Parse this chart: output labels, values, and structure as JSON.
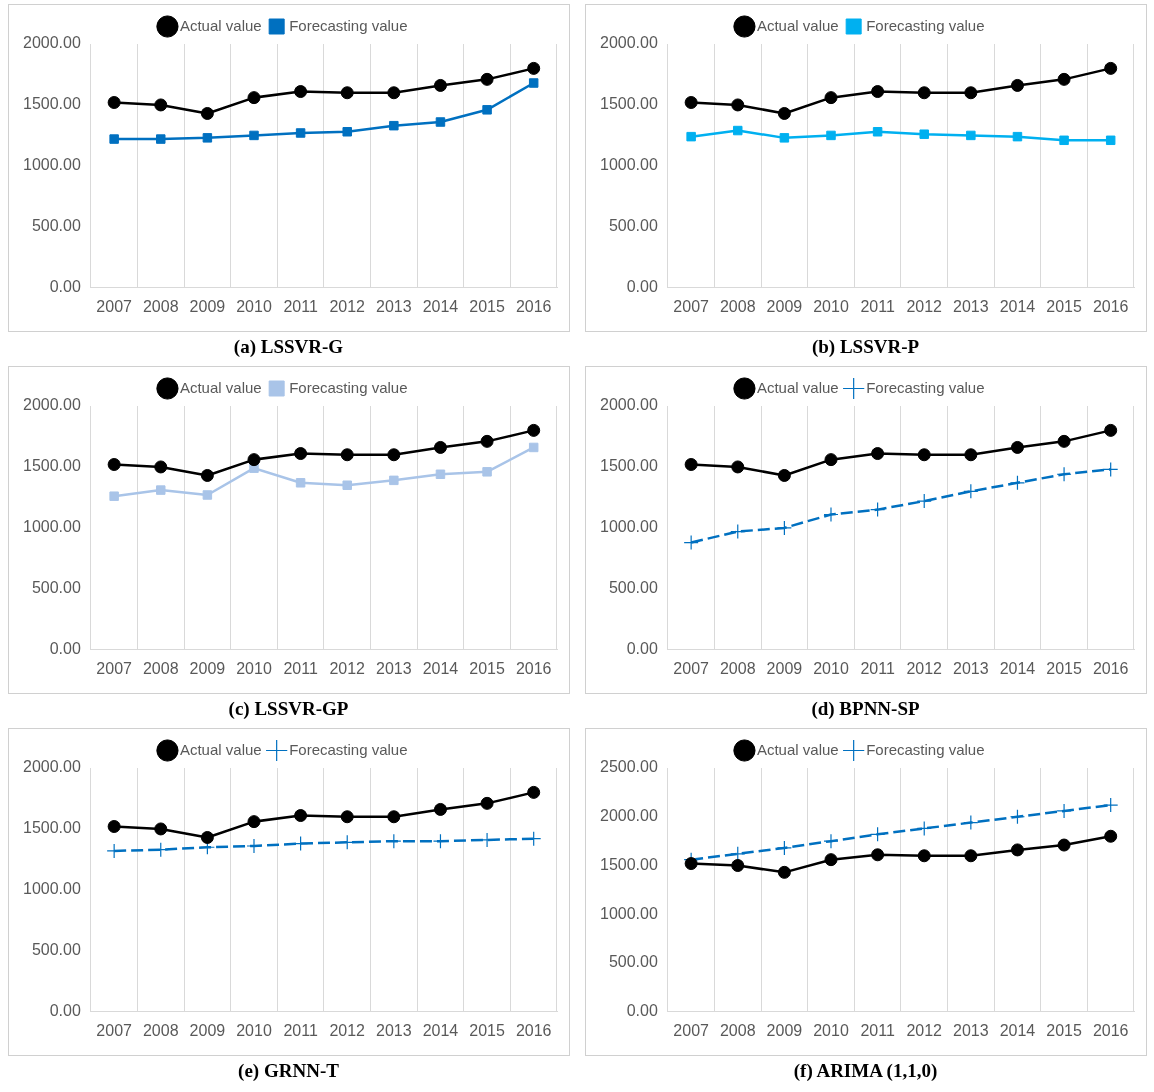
{
  "chart_data": [
    {
      "type": "line",
      "title": "(a) LSSVR-G",
      "categories": [
        "2007",
        "2008",
        "2009",
        "2010",
        "2011",
        "2012",
        "2013",
        "2014",
        "2015",
        "2016"
      ],
      "ylim": [
        0,
        2000
      ],
      "yticks": [
        {
          "value": 0,
          "label": "0.00"
        },
        {
          "value": 500,
          "label": "500.00"
        },
        {
          "value": 1000,
          "label": "1000.00"
        },
        {
          "value": 1500,
          "label": "1500.00"
        },
        {
          "value": 2000,
          "label": "2000.00"
        }
      ],
      "grid": "x",
      "legend": "top",
      "series": [
        {
          "name": "Actual value",
          "color": "#000000",
          "marker": "circle",
          "line_style": "solid",
          "values": [
            1520,
            1500,
            1430,
            1560,
            1610,
            1600,
            1600,
            1660,
            1710,
            1800
          ]
        },
        {
          "name": "Forecasting value",
          "color": "#0070c0",
          "marker": "square",
          "line_style": "solid",
          "values": [
            1220,
            1220,
            1230,
            1250,
            1270,
            1280,
            1330,
            1360,
            1460,
            1680
          ]
        }
      ]
    },
    {
      "type": "line",
      "title": "(b) LSSVR-P",
      "categories": [
        "2007",
        "2008",
        "2009",
        "2010",
        "2011",
        "2012",
        "2013",
        "2014",
        "2015",
        "2016"
      ],
      "ylim": [
        0,
        2000
      ],
      "yticks": [
        {
          "value": 0,
          "label": "0.00"
        },
        {
          "value": 500,
          "label": "500.00"
        },
        {
          "value": 1000,
          "label": "1000.00"
        },
        {
          "value": 1500,
          "label": "1500.00"
        },
        {
          "value": 2000,
          "label": "2000.00"
        }
      ],
      "grid": "x",
      "legend": "top",
      "series": [
        {
          "name": "Actual value",
          "color": "#000000",
          "marker": "circle",
          "line_style": "solid",
          "values": [
            1520,
            1500,
            1430,
            1560,
            1610,
            1600,
            1600,
            1660,
            1710,
            1800
          ]
        },
        {
          "name": "Forecasting value",
          "color": "#00b0f0",
          "marker": "square",
          "line_style": "solid",
          "values": [
            1240,
            1290,
            1230,
            1250,
            1280,
            1260,
            1250,
            1240,
            1210,
            1210
          ]
        }
      ]
    },
    {
      "type": "line",
      "title": "(c) LSSVR-GP",
      "categories": [
        "2007",
        "2008",
        "2009",
        "2010",
        "2011",
        "2012",
        "2013",
        "2014",
        "2015",
        "2016"
      ],
      "ylim": [
        0,
        2000
      ],
      "yticks": [
        {
          "value": 0,
          "label": "0.00"
        },
        {
          "value": 500,
          "label": "500.00"
        },
        {
          "value": 1000,
          "label": "1000.00"
        },
        {
          "value": 1500,
          "label": "1500.00"
        },
        {
          "value": 2000,
          "label": "2000.00"
        }
      ],
      "grid": "x",
      "legend": "top",
      "series": [
        {
          "name": "Actual value",
          "color": "#000000",
          "marker": "circle",
          "line_style": "solid",
          "values": [
            1520,
            1500,
            1430,
            1560,
            1610,
            1600,
            1600,
            1660,
            1710,
            1800
          ]
        },
        {
          "name": "Forecasting value",
          "color": "#a9c4e8",
          "marker": "square",
          "line_style": "solid",
          "values": [
            1260,
            1310,
            1270,
            1490,
            1370,
            1350,
            1390,
            1440,
            1460,
            1660
          ]
        }
      ]
    },
    {
      "type": "line",
      "title": "(d) BPNN-SP",
      "categories": [
        "2007",
        "2008",
        "2009",
        "2010",
        "2011",
        "2012",
        "2013",
        "2014",
        "2015",
        "2016"
      ],
      "ylim": [
        0,
        2000
      ],
      "yticks": [
        {
          "value": 0,
          "label": "0.00"
        },
        {
          "value": 500,
          "label": "500.00"
        },
        {
          "value": 1000,
          "label": "1000.00"
        },
        {
          "value": 1500,
          "label": "1500.00"
        },
        {
          "value": 2000,
          "label": "2000.00"
        }
      ],
      "grid": "x",
      "legend": "top",
      "series": [
        {
          "name": "Actual value",
          "color": "#000000",
          "marker": "circle",
          "line_style": "solid",
          "values": [
            1520,
            1500,
            1430,
            1560,
            1610,
            1600,
            1600,
            1660,
            1710,
            1800
          ]
        },
        {
          "name": "Forecasting value",
          "color": "#0070c0",
          "marker": "cross",
          "line_style": "dashed",
          "values": [
            880,
            970,
            1000,
            1110,
            1150,
            1220,
            1300,
            1370,
            1440,
            1480
          ]
        }
      ]
    },
    {
      "type": "line",
      "title": "(e) GRNN-T",
      "categories": [
        "2007",
        "2008",
        "2009",
        "2010",
        "2011",
        "2012",
        "2013",
        "2014",
        "2015",
        "2016"
      ],
      "ylim": [
        0,
        2000
      ],
      "yticks": [
        {
          "value": 0,
          "label": "0.00"
        },
        {
          "value": 500,
          "label": "500.00"
        },
        {
          "value": 1000,
          "label": "1000.00"
        },
        {
          "value": 1500,
          "label": "1500.00"
        },
        {
          "value": 2000,
          "label": "2000.00"
        }
      ],
      "grid": "x",
      "legend": "top",
      "series": [
        {
          "name": "Actual value",
          "color": "#000000",
          "marker": "circle",
          "line_style": "solid",
          "values": [
            1520,
            1500,
            1430,
            1560,
            1610,
            1600,
            1600,
            1660,
            1710,
            1800
          ]
        },
        {
          "name": "Forecasting value",
          "color": "#0070c0",
          "marker": "cross",
          "line_style": "dashed",
          "values": [
            1320,
            1330,
            1350,
            1360,
            1380,
            1390,
            1400,
            1400,
            1410,
            1420
          ]
        }
      ]
    },
    {
      "type": "line",
      "title": "(f) ARIMA (1,1,0)",
      "categories": [
        "2007",
        "2008",
        "2009",
        "2010",
        "2011",
        "2012",
        "2013",
        "2014",
        "2015",
        "2016"
      ],
      "ylim": [
        0,
        2500
      ],
      "yticks": [
        {
          "value": 0,
          "label": "0.00"
        },
        {
          "value": 500,
          "label": "500.00"
        },
        {
          "value": 1000,
          "label": "1000.00"
        },
        {
          "value": 1500,
          "label": "1500.00"
        },
        {
          "value": 2000,
          "label": "2000.00"
        },
        {
          "value": 2500,
          "label": "2500.00"
        }
      ],
      "grid": "x",
      "legend": "top",
      "series": [
        {
          "name": "Actual value",
          "color": "#000000",
          "marker": "circle",
          "line_style": "solid",
          "values": [
            1520,
            1500,
            1430,
            1560,
            1610,
            1600,
            1600,
            1660,
            1710,
            1800
          ]
        },
        {
          "name": "Forecasting value",
          "color": "#0070c0",
          "marker": "cross",
          "line_style": "dashed",
          "values": [
            1560,
            1620,
            1680,
            1750,
            1820,
            1880,
            1940,
            2000,
            2060,
            2120
          ]
        }
      ]
    }
  ]
}
